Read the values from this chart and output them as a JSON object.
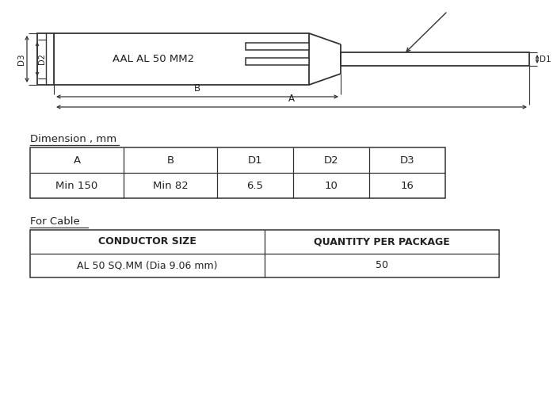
{
  "bg_color": "#f2f2f2",
  "label_aal": "AAL AL 50 MM2",
  "dim_title": "Dimension , mm",
  "for_cable": "For Cable",
  "table1_headers": [
    "A",
    "B",
    "D1",
    "D2",
    "D3"
  ],
  "table1_values": [
    "Min 150",
    "Min 82",
    "6.5",
    "10",
    "16"
  ],
  "table2_headers": [
    "CONDUCTOR SIZE",
    "QUANTITY PER PACKAGE"
  ],
  "table2_values": [
    "AL 50 SQ.MM (Dia 9.06 mm)",
    "50"
  ],
  "line_color": "#333333",
  "text_color": "#222222",
  "white": "#ffffff"
}
